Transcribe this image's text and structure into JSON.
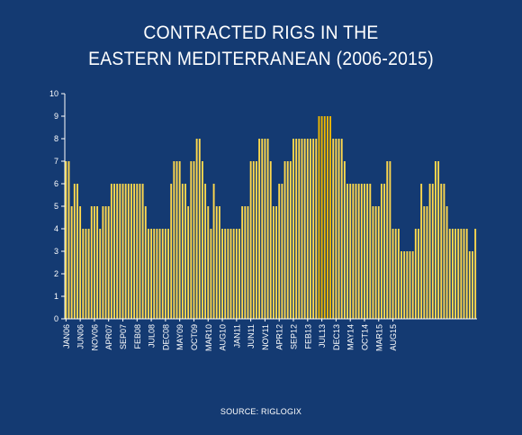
{
  "chart_data": {
    "type": "bar",
    "title_lines": [
      "CONTRACTED RIGS IN THE",
      "EASTERN MEDITERRANEAN (2006-2015)"
    ],
    "ylim": [
      0,
      10
    ],
    "yticks": [
      0,
      1,
      2,
      3,
      4,
      5,
      6,
      7,
      8,
      9,
      10
    ],
    "x_tick_labels": [
      "JAN06",
      "JUN06",
      "NOV06",
      "APR07",
      "SEP07",
      "FEB08",
      "JUL08",
      "DEC08",
      "MAY09",
      "OCT09",
      "MAR10",
      "AUG10",
      "JAN11",
      "JUN11",
      "NOV11",
      "APR12",
      "SEP12",
      "FEB13",
      "JUL13",
      "DEC13",
      "MAY14",
      "OCT14",
      "MAR15",
      "AUG15"
    ],
    "start_month": "JAN06",
    "values": [
      7,
      7,
      5,
      6,
      6,
      5,
      4,
      4,
      4,
      5,
      5,
      5,
      4,
      5,
      5,
      5,
      6,
      6,
      6,
      6,
      6,
      6,
      6,
      6,
      6,
      6,
      6,
      6,
      5,
      4,
      4,
      4,
      4,
      4,
      4,
      4,
      4,
      6,
      7,
      7,
      7,
      6,
      6,
      5,
      7,
      7,
      8,
      8,
      7,
      6,
      5,
      4,
      6,
      5,
      5,
      4,
      4,
      4,
      4,
      4,
      4,
      4,
      5,
      5,
      5,
      7,
      7,
      7,
      8,
      8,
      8,
      8,
      7,
      5,
      5,
      6,
      6,
      7,
      7,
      7,
      8,
      8,
      8,
      8,
      8,
      8,
      8,
      8,
      8,
      9,
      9,
      9,
      9,
      9,
      8,
      8,
      8,
      8,
      7,
      6,
      6,
      6,
      6,
      6,
      6,
      6,
      6,
      6,
      5,
      5,
      5,
      6,
      6,
      7,
      7,
      4,
      4,
      4,
      3,
      3,
      3,
      3,
      3,
      4,
      4,
      6,
      5,
      5,
      6,
      6,
      7,
      7,
      6,
      6,
      5,
      4,
      4,
      4,
      4,
      4,
      4,
      4,
      3,
      3,
      4
    ],
    "bar_color": "#ffd84d",
    "highlight_color": "#f0b800",
    "highlight_values": [
      9
    ]
  },
  "source": "SOURCE: RIGLOGIX"
}
